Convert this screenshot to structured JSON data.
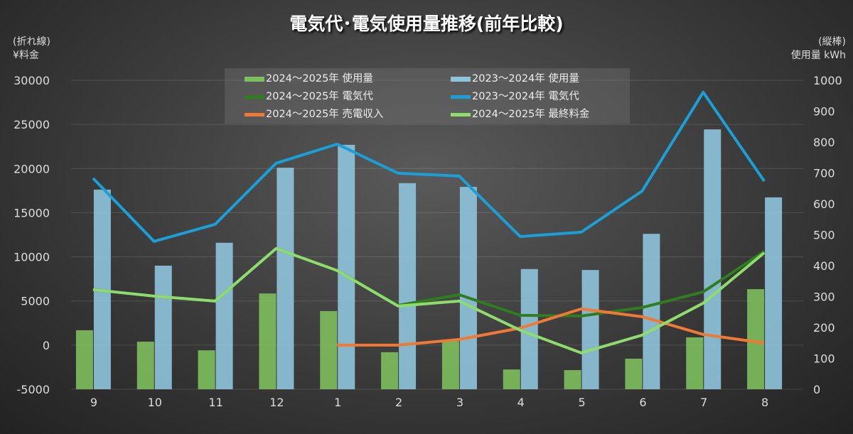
{
  "chart_data": {
    "type": "bar+line",
    "title": "電気代･電気使用量推移(前年比較)",
    "left_axis": {
      "label_line1": "(折れ線)",
      "label_line2": "¥料金",
      "range": [
        -5000,
        30000
      ],
      "ticks": [
        -5000,
        0,
        5000,
        10000,
        15000,
        20000,
        25000,
        30000
      ]
    },
    "right_axis": {
      "label_line1": "(縦棒)",
      "label_line2": "使用量 kWh",
      "range": [
        0,
        1000
      ],
      "ticks": [
        0,
        100,
        200,
        300,
        400,
        500,
        600,
        700,
        800,
        900,
        1000
      ]
    },
    "categories": [
      "9",
      "10",
      "11",
      "12",
      "1",
      "2",
      "3",
      "4",
      "5",
      "6",
      "7",
      "8"
    ],
    "grid": true,
    "legend_position": "top-center",
    "bars": [
      {
        "name": "2024～2025年 使用量",
        "color": "#7dbf5e",
        "values": [
          191,
          154,
          126,
          310,
          253,
          120,
          156,
          64,
          62,
          99,
          168,
          324
        ]
      },
      {
        "name": "2023～2024年 使用量",
        "color": "#8ec4dc",
        "values": [
          646,
          400,
          474,
          717,
          791,
          667,
          655,
          389,
          386,
          503,
          841,
          621
        ]
      }
    ],
    "lines": [
      {
        "name": "2024～2025年 電気代",
        "color": "#2e7d1e",
        "values": [
          6280,
          5550,
          4990,
          10940,
          8450,
          4500,
          5710,
          3380,
          3300,
          4260,
          6030,
          10620
        ]
      },
      {
        "name": "2023～2024年 電気代",
        "color": "#1a9fd6",
        "values": [
          18900,
          11750,
          13680,
          20600,
          22770,
          19470,
          19150,
          12300,
          12790,
          17460,
          28640,
          18580
        ]
      },
      {
        "name": "2024～2025年 売電収入",
        "color": "#f07a35",
        "values": [
          null,
          null,
          null,
          null,
          0,
          0,
          640,
          1930,
          4100,
          3220,
          1210,
          240
        ]
      },
      {
        "name": "2024～2025年 最終料金",
        "color": "#8fdc6e",
        "values": [
          6280,
          5550,
          4990,
          10940,
          8450,
          4420,
          4990,
          1690,
          -880,
          1130,
          4750,
          10460
        ]
      }
    ]
  }
}
